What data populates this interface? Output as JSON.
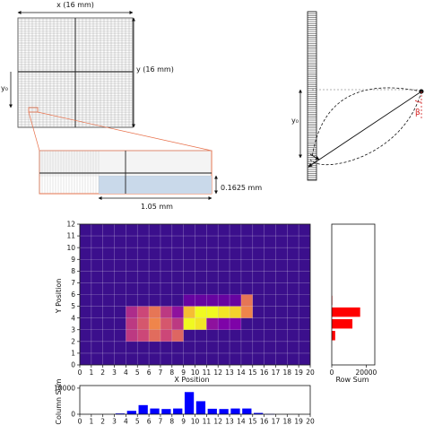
{
  "top_left": {
    "x_dim": "x (16 mm)",
    "y_dim": "y (16 mm)",
    "y0_label": "y₀",
    "inset_height_label": "0.1625 mm",
    "inset_width_label": "1.05 mm"
  },
  "top_right": {
    "y0_label": "y₀",
    "beta_label": "β"
  },
  "chart_data": [
    {
      "type": "heatmap",
      "xlabel": "X Position",
      "ylabel": "Y Position",
      "xlim": [
        0,
        20
      ],
      "ylim": [
        0,
        12
      ],
      "xticks": [
        "0",
        "1",
        "2",
        "3",
        "4",
        "5",
        "6",
        "7",
        "8",
        "9",
        "10",
        "11",
        "12",
        "13",
        "14",
        "15",
        "16",
        "17",
        "18",
        "19",
        "20"
      ],
      "yticks": [
        "0",
        "1",
        "2",
        "3",
        "4",
        "5",
        "6",
        "7",
        "8",
        "9",
        "10",
        "11",
        "12"
      ],
      "background_color": "#3b0f8c",
      "cells": [
        {
          "x": 4,
          "y": 2,
          "v": 0.45
        },
        {
          "x": 4,
          "y": 3,
          "v": 0.45
        },
        {
          "x": 4,
          "y": 4,
          "v": 0.4
        },
        {
          "x": 5,
          "y": 2,
          "v": 0.5
        },
        {
          "x": 5,
          "y": 3,
          "v": 0.55
        },
        {
          "x": 5,
          "y": 4,
          "v": 0.5
        },
        {
          "x": 6,
          "y": 2,
          "v": 0.62
        },
        {
          "x": 6,
          "y": 3,
          "v": 0.7
        },
        {
          "x": 6,
          "y": 4,
          "v": 0.65
        },
        {
          "x": 7,
          "y": 2,
          "v": 0.5
        },
        {
          "x": 7,
          "y": 3,
          "v": 0.55
        },
        {
          "x": 7,
          "y": 4,
          "v": 0.45
        },
        {
          "x": 8,
          "y": 2,
          "v": 0.6
        },
        {
          "x": 8,
          "y": 3,
          "v": 0.45
        },
        {
          "x": 8,
          "y": 4,
          "v": 0.3
        },
        {
          "x": 9,
          "y": 3,
          "v": 1.0
        },
        {
          "x": 9,
          "y": 4,
          "v": 0.85
        },
        {
          "x": 10,
          "y": 3,
          "v": 0.95
        },
        {
          "x": 10,
          "y": 4,
          "v": 1.0
        },
        {
          "x": 11,
          "y": 3,
          "v": 0.3
        },
        {
          "x": 11,
          "y": 4,
          "v": 1.0
        },
        {
          "x": 12,
          "y": 3,
          "v": 0.25
        },
        {
          "x": 12,
          "y": 4,
          "v": 0.95
        },
        {
          "x": 13,
          "y": 3,
          "v": 0.25
        },
        {
          "x": 13,
          "y": 4,
          "v": 0.9
        },
        {
          "x": 14,
          "y": 4,
          "v": 0.7
        },
        {
          "x": 14,
          "y": 5,
          "v": 0.65
        },
        {
          "x": 9,
          "y": 5,
          "v": 0.2
        },
        {
          "x": 10,
          "y": 5,
          "v": 0.2
        },
        {
          "x": 11,
          "y": 5,
          "v": 0.2
        },
        {
          "x": 12,
          "y": 5,
          "v": 0.2
        },
        {
          "x": 13,
          "y": 5,
          "v": 0.2
        }
      ]
    },
    {
      "type": "bar",
      "orientation": "horizontal",
      "xlabel": "Row Sum",
      "xlim": [
        0,
        25000
      ],
      "xticks": [
        "0",
        "20000"
      ],
      "ylim": [
        0,
        12
      ],
      "color": "#ff0000",
      "categories": [
        2,
        3,
        4,
        5
      ],
      "values": [
        2000,
        12000,
        16500,
        300
      ]
    },
    {
      "type": "bar",
      "ylabel": "Column Sum",
      "xlim": [
        0,
        20
      ],
      "xticks": [
        "0",
        "1",
        "2",
        "3",
        "4",
        "5",
        "6",
        "7",
        "8",
        "9",
        "10",
        "11",
        "12",
        "13",
        "14",
        "15",
        "16",
        "17",
        "18",
        "19",
        "20"
      ],
      "yticks": [
        "0",
        "10000"
      ],
      "ylim": [
        0,
        11000
      ],
      "color": "#0000ff",
      "categories": [
        3,
        4,
        5,
        6,
        7,
        8,
        9,
        10,
        11,
        12,
        13,
        14,
        15,
        16
      ],
      "values": [
        300,
        1300,
        3500,
        2200,
        2000,
        2200,
        8500,
        5000,
        2100,
        2000,
        2200,
        2200,
        500,
        100
      ]
    }
  ]
}
